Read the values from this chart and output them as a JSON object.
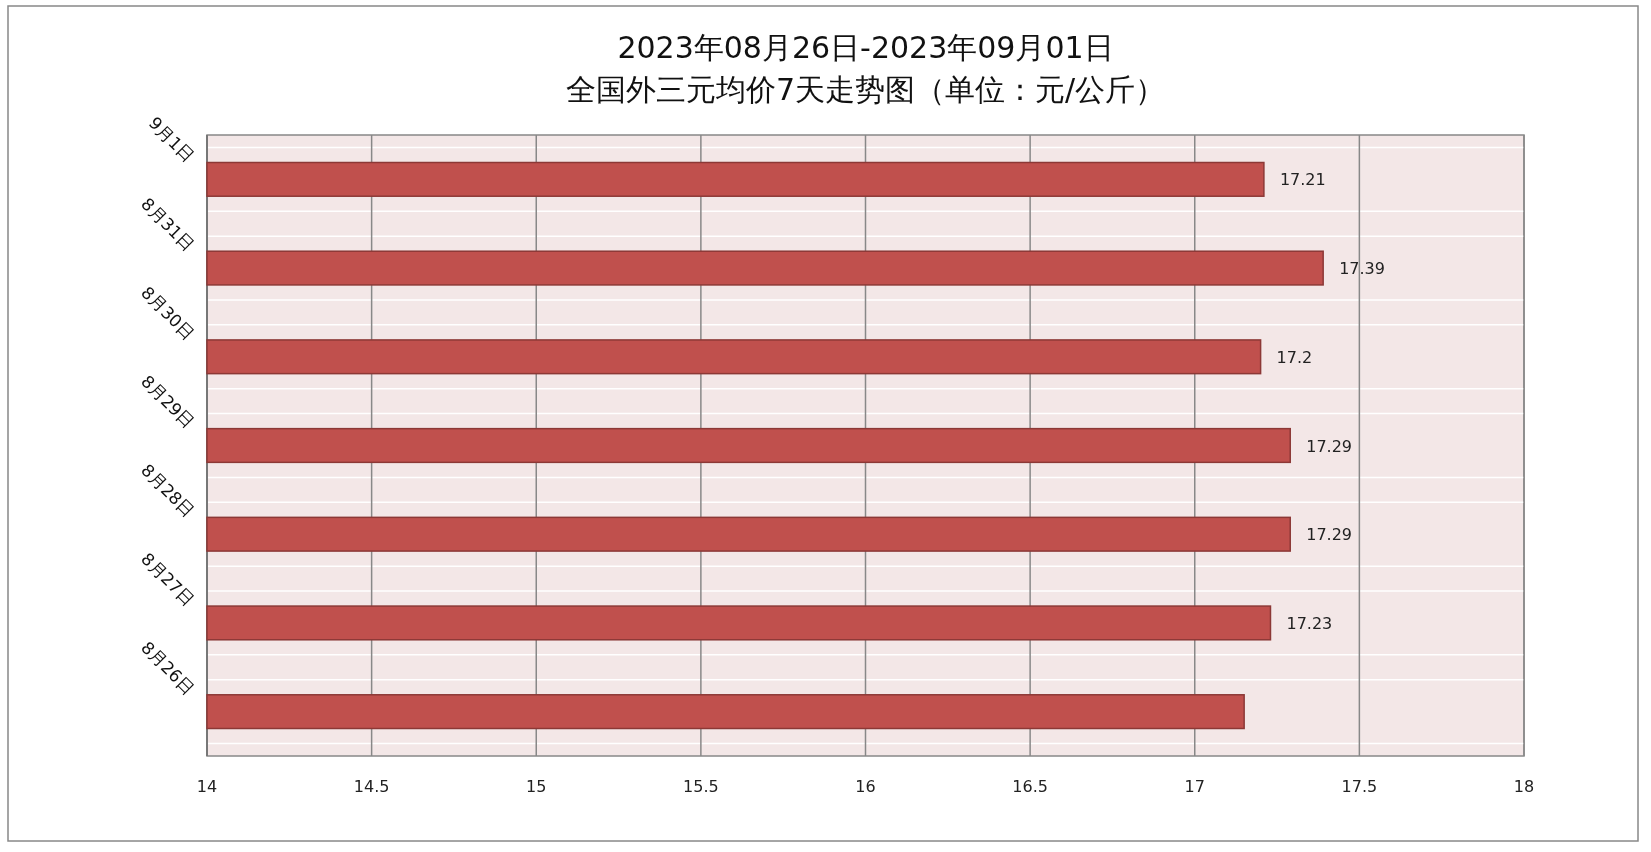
{
  "chart_data": {
    "type": "bar",
    "orientation": "horizontal",
    "title": "2023年08月26日-2023年09月01日",
    "subtitle": "全国外三元均价7天走势图（单位：元/公斤）",
    "categories": [
      "9月1日",
      "8月31日",
      "8月30日",
      "8月29日",
      "8月28日",
      "8月27日",
      "8月26日"
    ],
    "values": [
      17.21,
      17.39,
      17.2,
      17.29,
      17.29,
      17.23,
      17.15
    ],
    "value_labels": [
      "17.21",
      "17.39",
      "17.2",
      "17.29",
      "17.29",
      "17.23",
      null
    ],
    "color": "#c0504d",
    "xlim": [
      14,
      18
    ],
    "xticks": [
      14,
      14.5,
      15,
      15.5,
      16,
      16.5,
      17,
      17.5,
      18
    ],
    "grid": "x"
  }
}
